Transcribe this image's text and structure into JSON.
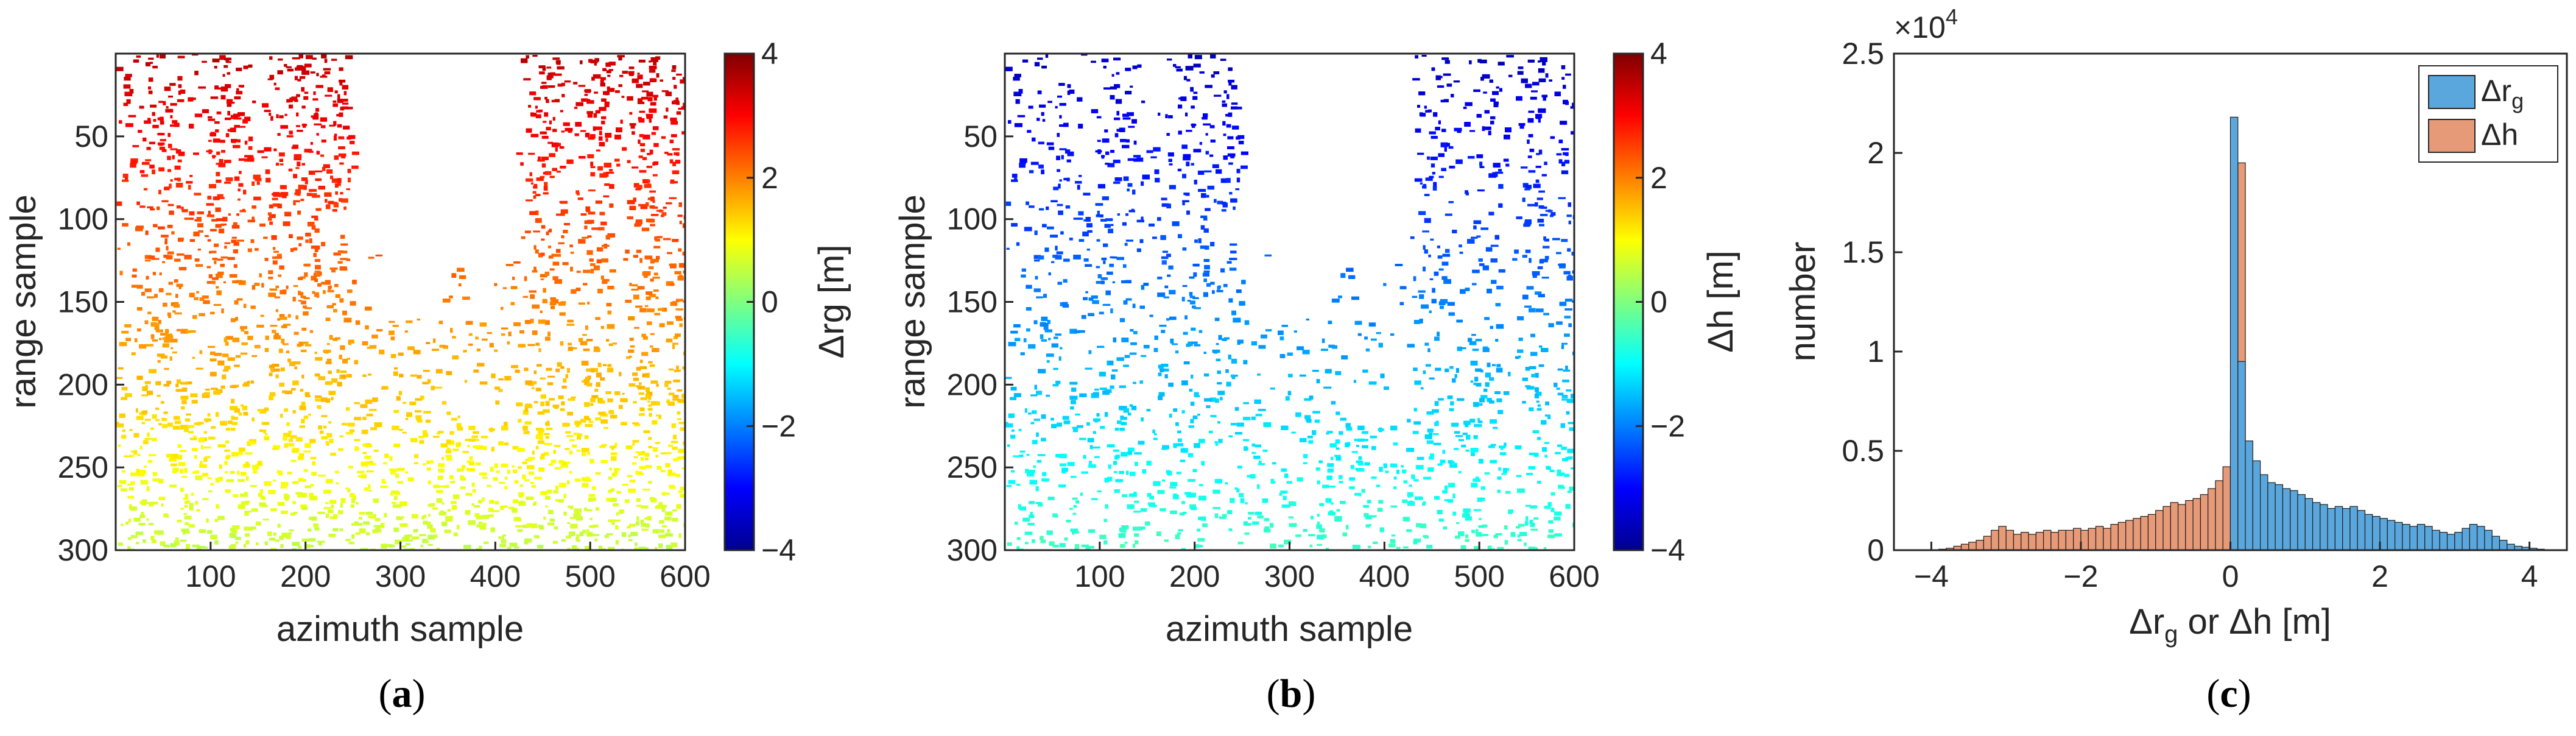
{
  "chart_data": [
    {
      "id": "a",
      "type": "heatmap",
      "caption": "a",
      "xlabel": "azimuth sample",
      "ylabel": "range sample",
      "xlim": [
        0,
        600
      ],
      "ylim": [
        300,
        0
      ],
      "xticks": [
        "100",
        "200",
        "300",
        "400",
        "500",
        "600"
      ],
      "yticks": [
        "50",
        "100",
        "150",
        "200",
        "250",
        "300"
      ],
      "colorbar": {
        "label": "Δrg [m]",
        "range": [
          -4,
          4
        ],
        "ticks": [
          "4",
          "2",
          "0",
          "−2",
          "−4"
        ],
        "colormap": "jet"
      },
      "description_value": "Δrg increases from about 0.5 m at range 300 to about 3.5 m at range 0"
    },
    {
      "id": "b",
      "type": "heatmap",
      "caption": "b",
      "xlabel": "azimuth sample",
      "ylabel": "range sample",
      "xlim": [
        0,
        600
      ],
      "ylim": [
        300,
        0
      ],
      "xticks": [
        "100",
        "200",
        "300",
        "400",
        "500",
        "600"
      ],
      "yticks": [
        "50",
        "100",
        "150",
        "200",
        "250",
        "300"
      ],
      "colorbar": {
        "label": "Δh [m]",
        "range": [
          -4,
          4
        ],
        "ticks": [
          "4",
          "2",
          "0",
          "−2",
          "−4"
        ],
        "colormap": "jet"
      },
      "description_value": "Δh decreases from about -0.5 m at range 300 to about -3.5 m at range 0"
    },
    {
      "id": "c",
      "type": "bar",
      "caption": "c",
      "xlabel_parts": [
        "Δr",
        "g",
        " or Δh [m]"
      ],
      "ylabel": "number",
      "exponent_label": "×10",
      "exponent_power": "4",
      "xlim": [
        -4.5,
        4.5
      ],
      "ylim": [
        0,
        2.5
      ],
      "xticks": [
        "−4",
        "−2",
        "0",
        "2",
        "4"
      ],
      "yticks": [
        "0",
        "0.5",
        "1",
        "1.5",
        "2",
        "2.5"
      ],
      "legend": {
        "position": "top-right"
      },
      "bin_width": 0.1,
      "series": [
        {
          "name_parts": [
            "Δr",
            "g"
          ],
          "color": "#5aa7dd",
          "bin_start": 0.0,
          "values": [
            2.18,
            0.95,
            0.55,
            0.45,
            0.38,
            0.34,
            0.33,
            0.31,
            0.3,
            0.28,
            0.26,
            0.24,
            0.23,
            0.21,
            0.22,
            0.21,
            0.22,
            0.2,
            0.18,
            0.17,
            0.16,
            0.15,
            0.14,
            0.13,
            0.12,
            0.13,
            0.12,
            0.1,
            0.09,
            0.08,
            0.09,
            0.11,
            0.13,
            0.12,
            0.1,
            0.07,
            0.05,
            0.03,
            0.02,
            0.015,
            0.01,
            0.005
          ]
        },
        {
          "name_parts": [
            "Δh"
          ],
          "color": "#e69a78",
          "bin_start": -3.9,
          "values": [
            0.005,
            0.01,
            0.02,
            0.03,
            0.04,
            0.05,
            0.07,
            0.1,
            0.12,
            0.1,
            0.08,
            0.09,
            0.08,
            0.09,
            0.1,
            0.09,
            0.1,
            0.1,
            0.11,
            0.1,
            0.11,
            0.12,
            0.11,
            0.13,
            0.14,
            0.15,
            0.16,
            0.17,
            0.18,
            0.2,
            0.22,
            0.24,
            0.23,
            0.25,
            0.26,
            0.28,
            0.31,
            0.35,
            0.42,
            0.6,
            1.95
          ]
        }
      ]
    }
  ]
}
